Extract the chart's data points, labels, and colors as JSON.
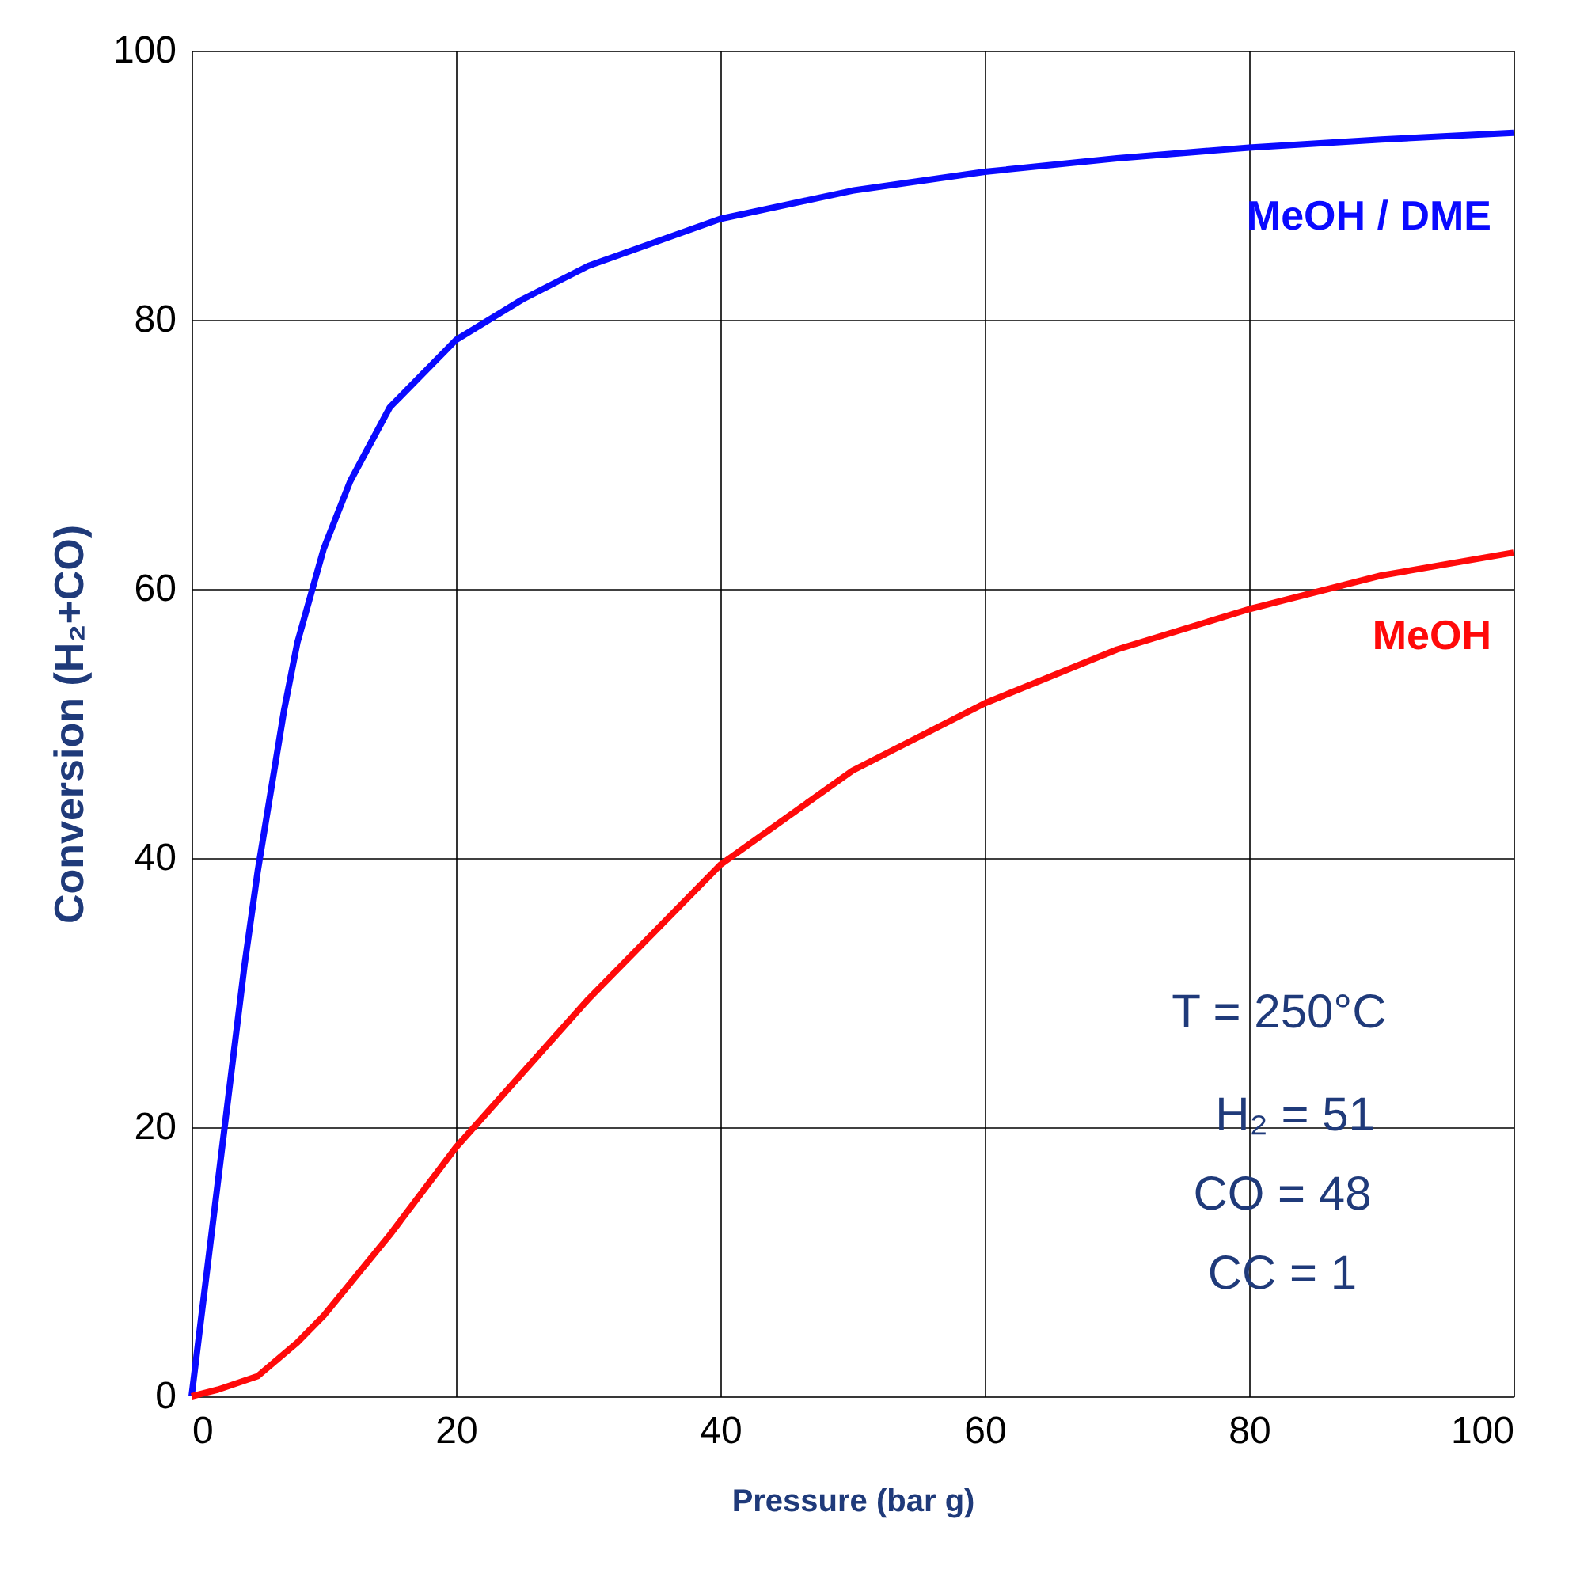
{
  "chart_data": {
    "type": "line",
    "xlabel": "Pressure (bar g)",
    "ylabel": "Conversion (H₂+CO)",
    "xlim": [
      0,
      100
    ],
    "ylim": [
      0,
      100
    ],
    "xticks": [
      0,
      20,
      40,
      60,
      80,
      100
    ],
    "yticks": [
      0,
      20,
      40,
      60,
      80,
      100
    ],
    "grid": true,
    "line_style": "solid",
    "marker": "none",
    "series": [
      {
        "name": "MeOH / DME",
        "color": "#0a0aff",
        "x": [
          0,
          1,
          2,
          3,
          4,
          5,
          6,
          7,
          8,
          10,
          12,
          15,
          20,
          25,
          30,
          40,
          50,
          60,
          70,
          80,
          90,
          100
        ],
        "values": [
          0,
          8,
          16,
          24,
          32,
          39,
          45,
          51,
          56,
          63,
          68,
          73.5,
          78.5,
          81.5,
          84,
          87.5,
          89.6,
          91,
          92,
          92.8,
          93.4,
          93.9
        ]
      },
      {
        "name": "MeOH",
        "color": "#ff0a0a",
        "x": [
          0,
          2,
          5,
          8,
          10,
          15,
          20,
          25,
          30,
          35,
          40,
          45,
          50,
          60,
          70,
          80,
          90,
          100
        ],
        "values": [
          0,
          0.5,
          1.5,
          4,
          6,
          12,
          18.5,
          24,
          29.5,
          34.5,
          39.5,
          43,
          46.5,
          51.5,
          55.5,
          58.5,
          61,
          62.7
        ]
      }
    ],
    "annotations": [
      "T = 250°C",
      "H₂ = 51",
      "CO = 48",
      "CC = 1"
    ]
  }
}
